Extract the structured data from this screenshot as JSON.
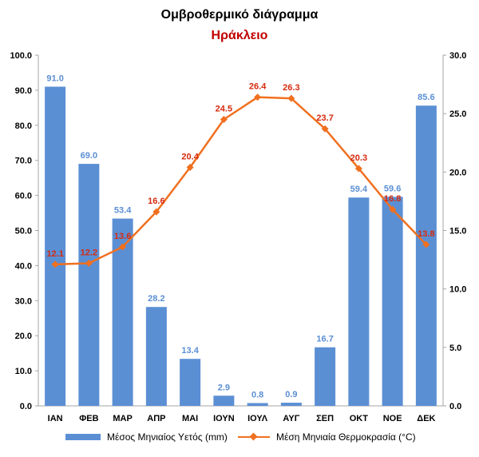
{
  "title": "Ομβροθερμικό διάγραμμα",
  "subtitle": "Ηράκλειο",
  "colors": {
    "bar": "#5b8fd4",
    "bar_label": "#5b8fd4",
    "line": "#f07020",
    "line_label": "#d62a0e",
    "subtitle": "#c00000"
  },
  "chart_data": {
    "type": "bar+line",
    "categories": [
      "ΙΑΝ",
      "ΦΕΒ",
      "ΜΑΡ",
      "ΑΠΡ",
      "ΜΑΙ",
      "ΙΟΥΝ",
      "ΙΟΥΛ",
      "ΑΥΓ",
      "ΣΕΠ",
      "ΟΚΤ",
      "ΝΟΕ",
      "ΔΕΚ"
    ],
    "series": [
      {
        "name": "Μέσος Μηνιαίος Υετός (mm)",
        "type": "bar",
        "axis": "left",
        "values": [
          91.0,
          69.0,
          53.4,
          28.2,
          13.4,
          2.9,
          0.8,
          0.9,
          16.7,
          59.4,
          59.6,
          85.6
        ]
      },
      {
        "name": "Μέση Μηνιαία Θερμοκρασία (°C)",
        "type": "line",
        "axis": "right",
        "marker": "diamond",
        "values": [
          12.1,
          12.2,
          13.6,
          16.6,
          20.4,
          24.5,
          26.4,
          26.3,
          23.7,
          20.3,
          16.8,
          13.8
        ]
      }
    ],
    "y_left": {
      "min": 0,
      "max": 100,
      "ticks": [
        "0.0",
        "10.0",
        "20.0",
        "30.0",
        "40.0",
        "50.0",
        "60.0",
        "70.0",
        "80.0",
        "90.0",
        "100.0"
      ]
    },
    "y_right": {
      "min": 0,
      "max": 30,
      "ticks": [
        "0.0",
        "5.0",
        "10.0",
        "15.0",
        "20.0",
        "25.0",
        "30.0"
      ]
    },
    "grid": false,
    "legend_position": "bottom"
  }
}
